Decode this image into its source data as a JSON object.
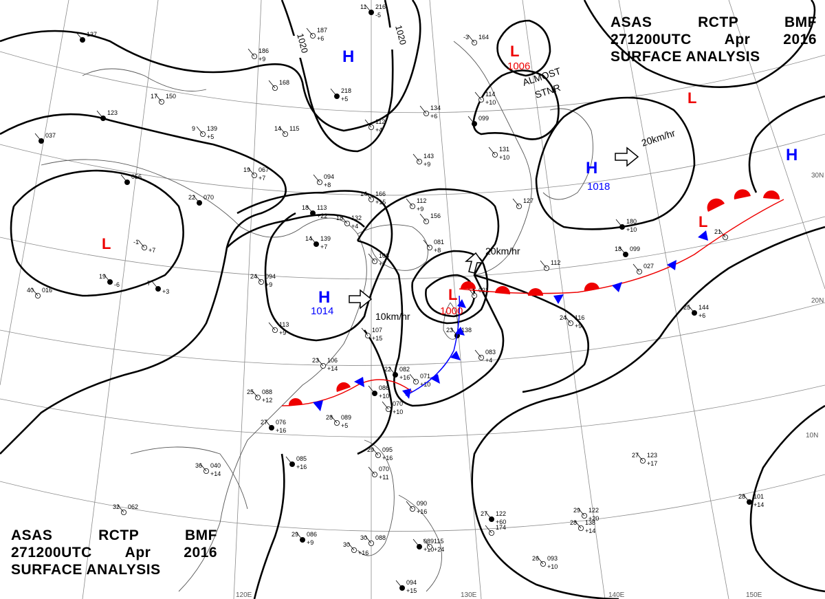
{
  "title": {
    "line1": [
      "ASAS",
      "RCTP",
      "BMF"
    ],
    "line2": [
      "271200UTC",
      "Apr",
      "2016"
    ],
    "line3": "SURFACE ANALYSIS"
  },
  "isobar_labels": [
    "1020",
    "1020"
  ],
  "centers": {
    "high_west_china": "H",
    "high_east_china": "H",
    "high_east_china_pressure": "1014",
    "high_japan": "H",
    "high_japan_pressure": "1018",
    "high_far_east": "H",
    "low_siberia": "L",
    "low_siberia_pressure": "1006",
    "low_aleutian": "L",
    "low_west_china": "L",
    "low_taiwan": "L",
    "low_taiwan_pressure": "1000",
    "low_pacific_front": "L"
  },
  "annotations": {
    "almost_stnr_1": "ALMOST",
    "almost_stnr_2": "STNR",
    "move_japan_high": "20km/hr",
    "move_taiwan_low": "20km/hr",
    "move_china_high": "10km/hr"
  },
  "lat_labels": [
    "30N",
    "20N",
    "10N"
  ],
  "lon_labels": [
    "120E",
    "130E",
    "140E",
    "150E"
  ],
  "stations": [
    {
      "t": "11",
      "p": "216",
      "e": "-5"
    },
    {
      "t": "-3",
      "p": "164",
      "e": ""
    },
    {
      "t": "",
      "p": "187",
      "e": "+6"
    },
    {
      "t": "",
      "p": "137",
      "e": ""
    },
    {
      "t": "",
      "p": "186",
      "e": "+9"
    },
    {
      "t": "",
      "p": "168",
      "e": ""
    },
    {
      "t": "",
      "p": "218",
      "e": "+5"
    },
    {
      "t": "",
      "p": "114",
      "e": "+10"
    },
    {
      "t": "",
      "p": "134",
      "e": "+6"
    },
    {
      "t": "",
      "p": "123",
      "e": ""
    },
    {
      "t": "17",
      "p": "150",
      "e": ""
    },
    {
      "t": "9",
      "p": "139",
      "e": "+5"
    },
    {
      "t": "",
      "p": "037",
      "e": ""
    },
    {
      "t": "14",
      "p": "115",
      "e": ""
    },
    {
      "t": "",
      "p": "112",
      "e": "+4"
    },
    {
      "t": "",
      "p": "099",
      "e": ""
    },
    {
      "t": "",
      "p": "131",
      "e": "+10"
    },
    {
      "t": "",
      "p": "143",
      "e": "+9"
    },
    {
      "t": "",
      "p": "056",
      "e": ""
    },
    {
      "t": "19",
      "p": "067",
      "e": "+7"
    },
    {
      "t": "",
      "p": "094",
      "e": "+8"
    },
    {
      "t": "22",
      "p": "070",
      "e": ""
    },
    {
      "t": "14",
      "p": "166",
      "e": "+15"
    },
    {
      "t": "",
      "p": "112",
      "e": "+9"
    },
    {
      "t": "18",
      "p": "113",
      "e": "+22"
    },
    {
      "t": "18",
      "p": "132",
      "e": "+4"
    },
    {
      "t": "",
      "p": "156",
      "e": ""
    },
    {
      "t": "",
      "p": "180",
      "e": "+10"
    },
    {
      "t": "",
      "p": "127",
      "e": ""
    },
    {
      "t": "-1",
      "p": "",
      "e": "+7"
    },
    {
      "t": "14",
      "p": "139",
      "e": "+7"
    },
    {
      "t": "",
      "p": "081",
      "e": "+8"
    },
    {
      "t": "",
      "p": "108",
      "e": "+7"
    },
    {
      "t": "18",
      "p": "099",
      "e": ""
    },
    {
      "t": "",
      "p": "112",
      "e": ""
    },
    {
      "t": "",
      "p": "027",
      "e": ""
    },
    {
      "t": "7",
      "p": "",
      "e": "+3"
    },
    {
      "t": "24",
      "p": "094",
      "e": "+9"
    },
    {
      "t": "",
      "p": "021",
      "e": ""
    },
    {
      "t": "19",
      "p": "",
      "e": "-6"
    },
    {
      "t": "40",
      "p": "016",
      "e": ""
    },
    {
      "t": "24",
      "p": "116",
      "e": "+9"
    },
    {
      "t": "25",
      "p": "144",
      "e": "+6"
    },
    {
      "t": "",
      "p": "113",
      "e": "+9"
    },
    {
      "t": "",
      "p": "107",
      "e": "+15"
    },
    {
      "t": "23",
      "p": "138",
      "e": ""
    },
    {
      "t": "23",
      "p": "106",
      "e": "+14"
    },
    {
      "t": "",
      "p": "083",
      "e": "+4"
    },
    {
      "t": "22",
      "p": "082",
      "e": "+16"
    },
    {
      "t": "25",
      "p": "088",
      "e": "+12"
    },
    {
      "t": "",
      "p": "071",
      "e": "+10"
    },
    {
      "t": "",
      "p": "086",
      "e": "+10"
    },
    {
      "t": "",
      "p": "070",
      "e": "+10"
    },
    {
      "t": "28",
      "p": "089",
      "e": "+5"
    },
    {
      "t": "27",
      "p": "076",
      "e": "+16"
    },
    {
      "t": "29",
      "p": "095",
      "e": "+16"
    },
    {
      "t": "27",
      "p": "123",
      "e": "+17"
    },
    {
      "t": "",
      "p": "085",
      "e": "+16"
    },
    {
      "t": "36",
      "p": "040",
      "e": "+14"
    },
    {
      "t": "",
      "p": "070",
      "e": "+11"
    },
    {
      "t": "28",
      "p": "101",
      "e": "+14"
    },
    {
      "t": "32",
      "p": "062",
      "e": ""
    },
    {
      "t": "",
      "p": "090",
      "e": "+16"
    },
    {
      "t": "27",
      "p": "122",
      "e": "+60"
    },
    {
      "t": "29",
      "p": "122",
      "e": "+20"
    },
    {
      "t": "28",
      "p": "138",
      "e": "+14"
    },
    {
      "t": "29",
      "p": "086",
      "e": "+9"
    },
    {
      "t": "30",
      "p": "",
      "e": "+16"
    },
    {
      "t": "30",
      "p": "088",
      "e": ""
    },
    {
      "t": "",
      "p": "089",
      "e": "+10"
    },
    {
      "t": "",
      "p": "115",
      "e": "+24"
    },
    {
      "t": "26",
      "p": "093",
      "e": "+10"
    },
    {
      "t": "",
      "p": "094",
      "e": "+15"
    },
    {
      "t": "",
      "p": "174",
      "e": ""
    },
    {
      "t": "21",
      "p": "",
      "e": ""
    }
  ]
}
